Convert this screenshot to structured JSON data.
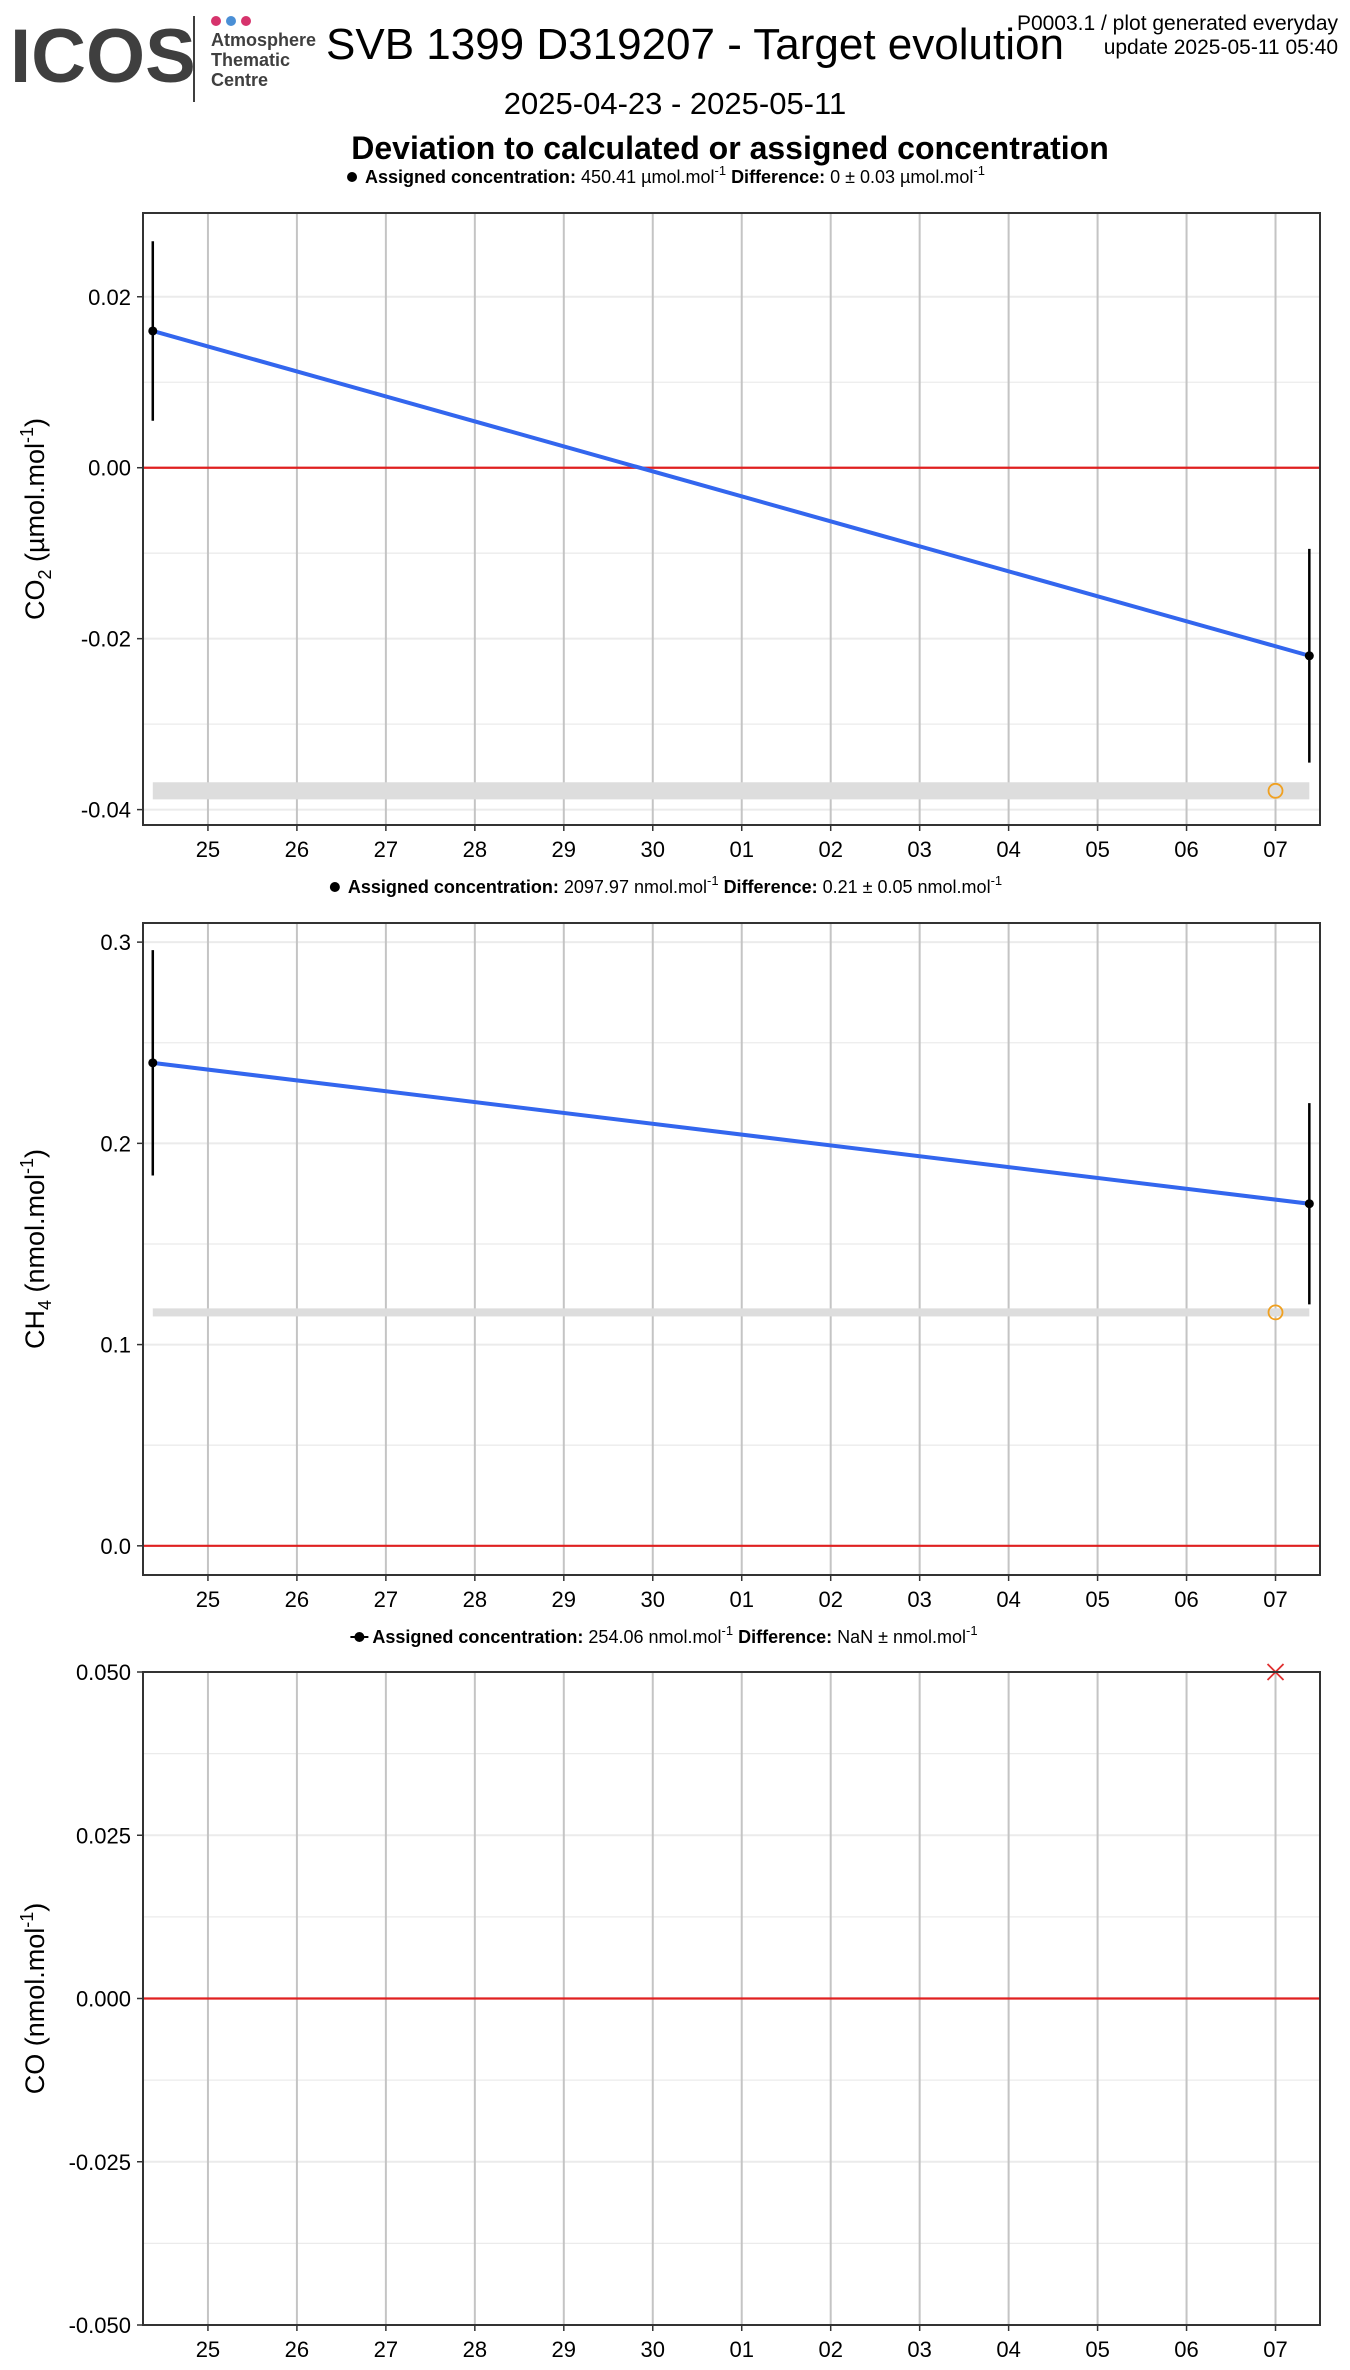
{
  "header": {
    "brand_text": "ICOS",
    "atc_lines": [
      "Atmosphere",
      "Thematic",
      "Centre"
    ],
    "title": "SVB 1399 D319207 - Target evolution",
    "product_line": "P0003.1 / plot generated everyday",
    "update_line": "update  2025-05-11 05:40",
    "date_range": "2025-04-23 - 2025-05-11",
    "subtitle": "Deviation to calculated or assigned concentration",
    "logo_dot_colors": [
      "#d6336c",
      "#4a8fd6",
      "#d6336c"
    ],
    "logo_text_color": "#3f3f3f"
  },
  "colors": {
    "fit_line": "#3366ee",
    "zero_line": "#e02020",
    "points": "#000000",
    "reference_marker": "#f0a020",
    "co_marker": "#e03030",
    "band": "#dddddd",
    "grid_major": "#c4c4c4",
    "grid_minor": "#ebebeb",
    "panel_border": "#333333"
  },
  "chart_data": [
    {
      "type": "scatter",
      "species": "CO2",
      "ylabel": "CO2 (µmol.mol-1)",
      "ylabel_parts": [
        "CO",
        "2",
        " (µmol.mol",
        "-1",
        ")"
      ],
      "legend": {
        "label": "Assigned concentration:",
        "value": "450.41 µmol.mol",
        "value_sup": "-1",
        "diff_label": "Difference:",
        "diff_value": "0 ± 0.03 µmol.mol",
        "diff_sup": "-1"
      },
      "x_ticks": [
        "25",
        "26",
        "27",
        "28",
        "29",
        "30",
        "01",
        "02",
        "03",
        "04",
        "05",
        "06",
        "07"
      ],
      "x_range": [
        -0.73,
        12.5
      ],
      "ylim": [
        -0.0418,
        0.0298
      ],
      "y_ticks": [
        -0.04,
        -0.02,
        0.0,
        0.02
      ],
      "y_tick_labels": [
        "-0.04",
        "-0.02",
        "0.00",
        "0.02"
      ],
      "points": [
        {
          "x": -0.62,
          "y": 0.016,
          "err": 0.0105
        },
        {
          "x": 12.38,
          "y": -0.022,
          "err": 0.0125
        }
      ],
      "fit_line": [
        [
          -0.62,
          0.016
        ],
        [
          12.38,
          -0.022
        ]
      ],
      "band": {
        "x_start": -0.62,
        "x_end": 12.38,
        "y_low": -0.0388,
        "y_high": -0.0368
      },
      "reference_marker": {
        "x": 12.0,
        "y": -0.0378,
        "shape": "open-circle"
      }
    },
    {
      "type": "scatter",
      "species": "CH4",
      "ylabel": "CH4 (nmol.mol-1)",
      "ylabel_parts": [
        "CH",
        "4",
        " (nmol.mol",
        "-1",
        ")"
      ],
      "legend": {
        "label": "Assigned concentration:",
        "value": "2097.97 nmol.mol",
        "value_sup": "-1",
        "diff_label": "Difference:",
        "diff_value": "0.21 ± 0.05 nmol.mol",
        "diff_sup": "-1"
      },
      "x_ticks": [
        "25",
        "26",
        "27",
        "28",
        "29",
        "30",
        "01",
        "02",
        "03",
        "04",
        "05",
        "06",
        "07"
      ],
      "x_range": [
        -0.73,
        12.5
      ],
      "ylim": [
        -0.0145,
        0.3095
      ],
      "y_ticks": [
        0.0,
        0.1,
        0.2,
        0.3
      ],
      "y_tick_labels": [
        "0.0",
        "0.1",
        "0.2",
        "0.3"
      ],
      "points": [
        {
          "x": -0.62,
          "y": 0.24,
          "err": 0.056
        },
        {
          "x": 12.38,
          "y": 0.17,
          "err": 0.05
        }
      ],
      "fit_line": [
        [
          -0.62,
          0.24
        ],
        [
          12.38,
          0.17
        ]
      ],
      "band": {
        "x_start": -0.62,
        "x_end": 12.38,
        "y_low": 0.114,
        "y_high": 0.118
      },
      "reference_marker": {
        "x": 12.0,
        "y": 0.116,
        "shape": "open-circle"
      }
    },
    {
      "type": "scatter",
      "species": "CO",
      "ylabel": "CO (nmol.mol-1)",
      "ylabel_parts": [
        "CO",
        "",
        " (nmol.mol",
        "-1",
        ")"
      ],
      "legend": {
        "label": "Assigned concentration:",
        "value": "254.06 nmol.mol",
        "value_sup": "-1",
        "diff_label": "Difference:",
        "diff_value": "NaN ±  nmol.mol",
        "diff_sup": "-1"
      },
      "x_ticks": [
        "25",
        "26",
        "27",
        "28",
        "29",
        "30",
        "01",
        "02",
        "03",
        "04",
        "05",
        "06",
        "07"
      ],
      "x_range": [
        -0.73,
        12.5
      ],
      "ylim": [
        -0.05,
        0.05
      ],
      "y_ticks": [
        -0.05,
        -0.025,
        0.0,
        0.025,
        0.05
      ],
      "y_tick_labels": [
        "-0.050",
        "-0.025",
        "0.000",
        "0.025",
        "0.050"
      ],
      "points": [],
      "fit_line": null,
      "band": null,
      "reference_marker": {
        "x": 12.0,
        "y": 0.05,
        "shape": "cross"
      }
    }
  ]
}
